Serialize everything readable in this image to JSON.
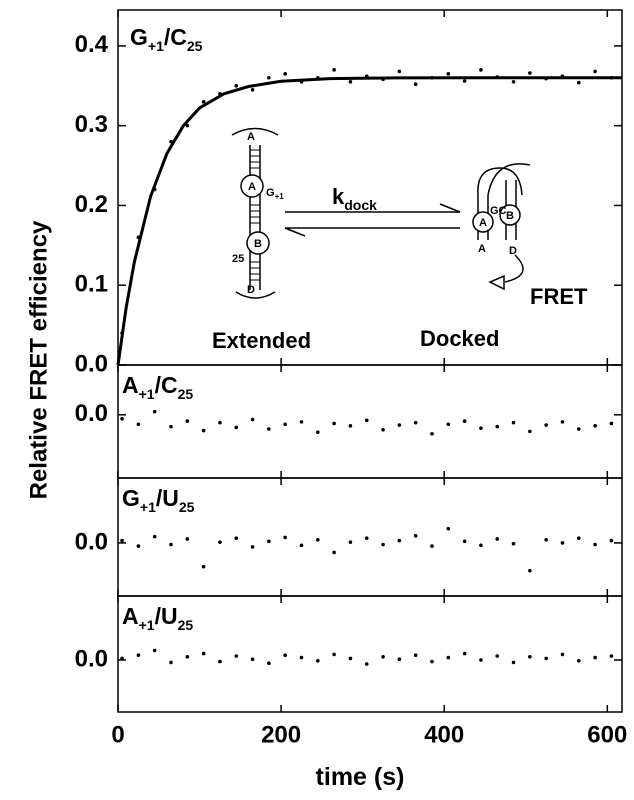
{
  "chart_data": [
    {
      "type": "scatter",
      "ylabel": "Relative FRET efficiency",
      "label": [
        "G",
        "+1",
        "/C",
        "25"
      ],
      "color": "#000000",
      "xlim": [
        0,
        618
      ],
      "ylim": [
        0,
        0.445
      ],
      "yticks": [
        {
          "value": 0,
          "label": "0.0"
        },
        {
          "value": 0.1,
          "label": "0.1"
        },
        {
          "value": 0.2,
          "label": "0.2"
        },
        {
          "value": 0.3,
          "label": "0.3"
        },
        {
          "value": 0.4,
          "label": "0.4"
        }
      ],
      "x": [
        5,
        25,
        45,
        65,
        85,
        105,
        125,
        145,
        165,
        185,
        205,
        225,
        245,
        265,
        285,
        305,
        325,
        345,
        365,
        385,
        405,
        425,
        445,
        465,
        485,
        505,
        525,
        545,
        565,
        585,
        605
      ],
      "values": [
        0.04,
        0.16,
        0.22,
        0.28,
        0.3,
        0.33,
        0.34,
        0.35,
        0.345,
        0.36,
        0.365,
        0.355,
        0.36,
        0.37,
        0.355,
        0.362,
        0.358,
        0.368,
        0.352,
        0.36,
        0.365,
        0.356,
        0.37,
        0.361,
        0.355,
        0.366,
        0.359,
        0.362,
        0.354,
        0.368,
        0.36
      ],
      "fit": {
        "x": [
          0,
          10,
          20,
          40,
          60,
          80,
          100,
          130,
          160,
          200,
          260,
          340,
          450,
          618
        ],
        "values": [
          0,
          0.0719,
          0.1288,
          0.2115,
          0.2652,
          0.2997,
          0.3222,
          0.34,
          0.3491,
          0.3557,
          0.3589,
          0.3599,
          0.36,
          0.36
        ]
      },
      "rate": [
        "k",
        "dock"
      ],
      "annotations": [
        "Extended",
        "Docked",
        "FRET"
      ],
      "diagram_labels": [
        "A",
        "A",
        "G",
        "+1",
        "25",
        "B",
        "D",
        "A",
        "B",
        "GC",
        "A",
        "D"
      ]
    },
    {
      "type": "scatter",
      "label": [
        "A",
        "+1",
        "/C",
        "25"
      ],
      "color": "#000000",
      "xlim": [
        0,
        618
      ],
      "ylim": [
        -0.08,
        0.063
      ],
      "yticks": [
        {
          "value": 0,
          "label": "0.0"
        }
      ],
      "x": [
        5,
        25,
        45,
        65,
        85,
        105,
        125,
        145,
        165,
        185,
        205,
        225,
        245,
        265,
        285,
        305,
        325,
        345,
        365,
        385,
        405,
        425,
        445,
        465,
        485,
        505,
        525,
        545,
        565,
        585,
        605
      ],
      "values": [
        -0.005,
        -0.012,
        0.004,
        -0.015,
        -0.008,
        -0.02,
        -0.01,
        -0.016,
        -0.006,
        -0.018,
        -0.012,
        -0.009,
        -0.022,
        -0.011,
        -0.014,
        -0.007,
        -0.019,
        -0.013,
        -0.01,
        -0.024,
        -0.012,
        -0.008,
        -0.017,
        -0.015,
        -0.01,
        -0.021,
        -0.013,
        -0.009,
        -0.018,
        -0.014,
        -0.011
      ]
    },
    {
      "type": "scatter",
      "label": [
        "G",
        "+1",
        "/U",
        "25"
      ],
      "color": "#000000",
      "xlim": [
        0,
        618
      ],
      "ylim": [
        -0.067,
        0.082
      ],
      "yticks": [
        {
          "value": 0,
          "label": "0.0"
        }
      ],
      "x": [
        5,
        25,
        45,
        65,
        85,
        105,
        125,
        145,
        165,
        185,
        205,
        225,
        245,
        265,
        285,
        305,
        325,
        345,
        365,
        385,
        405,
        425,
        445,
        465,
        485,
        505,
        525,
        545,
        565,
        585,
        605
      ],
      "values": [
        0.003,
        -0.004,
        0.008,
        -0.002,
        0.005,
        -0.03,
        0.001,
        0.006,
        -0.005,
        0.002,
        0.007,
        -0.003,
        0.004,
        -0.012,
        0.001,
        0.006,
        -0.002,
        0.003,
        0.009,
        -0.004,
        0.018,
        0.002,
        -0.003,
        0.005,
        -0.001,
        -0.035,
        0.004,
        0.0,
        0.006,
        -0.002,
        0.003
      ]
    },
    {
      "type": "scatter",
      "label": [
        "A",
        "+1",
        "/U",
        "25"
      ],
      "xlabel": "time (s)",
      "color": "#000000",
      "xlim": [
        0,
        618
      ],
      "ylim": [
        -0.065,
        0.08
      ],
      "xticks": [
        0,
        200,
        400,
        600
      ],
      "yticks": [
        {
          "value": 0,
          "label": "0.0"
        }
      ],
      "x": [
        5,
        25,
        45,
        65,
        85,
        105,
        125,
        145,
        165,
        185,
        205,
        225,
        245,
        265,
        285,
        305,
        325,
        345,
        365,
        385,
        405,
        425,
        445,
        465,
        485,
        505,
        525,
        545,
        565,
        585,
        605
      ],
      "values": [
        0.002,
        0.006,
        0.012,
        -0.003,
        0.004,
        0.008,
        -0.002,
        0.005,
        0.001,
        -0.004,
        0.006,
        0.003,
        -0.001,
        0.007,
        0.002,
        -0.005,
        0.004,
        0.001,
        0.006,
        -0.002,
        0.003,
        0.008,
        0.0,
        0.005,
        -0.003,
        0.004,
        0.002,
        0.007,
        -0.001,
        0.003,
        0.005
      ]
    }
  ]
}
